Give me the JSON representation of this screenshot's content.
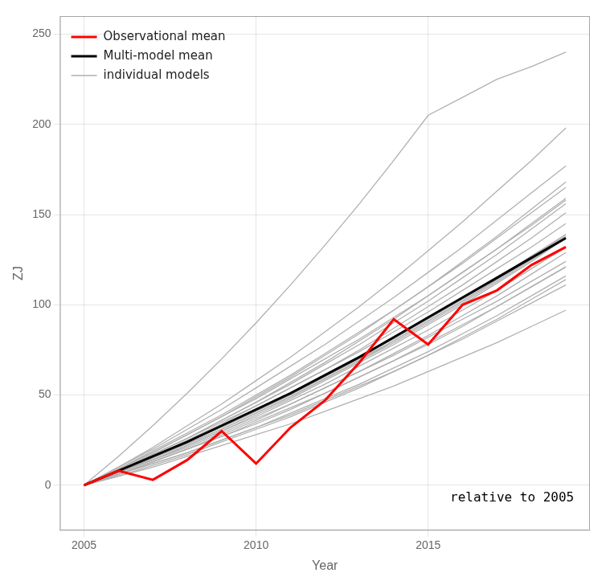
{
  "chart_data": {
    "type": "line",
    "xlabel": "Year",
    "ylabel": "ZJ",
    "annotation": "relative to 2005",
    "x": [
      2005,
      2006,
      2007,
      2008,
      2009,
      2010,
      2011,
      2012,
      2013,
      2014,
      2015,
      2016,
      2017,
      2018,
      2019
    ],
    "xlim": [
      2004.3,
      2019.7
    ],
    "ylim": [
      -25,
      260
    ],
    "xticks": [
      2005,
      2010,
      2015
    ],
    "yticks": [
      0,
      50,
      100,
      150,
      200,
      250
    ],
    "grid": true,
    "legend": "upper left",
    "series": [
      {
        "name": "Observational mean",
        "color": "#ff0000",
        "values": [
          0,
          8,
          3,
          14,
          30,
          12,
          32,
          47,
          68,
          92,
          78,
          100,
          108,
          122,
          132
        ]
      },
      {
        "name": "Multi-model mean",
        "color": "#000000",
        "values": [
          0,
          8,
          16,
          24,
          33,
          42,
          51,
          61,
          71,
          82,
          93,
          104,
          115,
          126,
          137
        ]
      },
      {
        "name": "individual models",
        "color": "#b0b0b0",
        "values": [
          0,
          5,
          10,
          16,
          22,
          28,
          34,
          41,
          48,
          55,
          63,
          71,
          79,
          88,
          97
        ]
      },
      {
        "name": "individual models",
        "color": "#b0b0b0",
        "values": [
          0,
          7,
          14,
          21,
          29,
          37,
          45,
          54,
          63,
          72,
          82,
          92,
          102,
          113,
          124
        ]
      },
      {
        "name": "individual models",
        "color": "#b0b0b0",
        "values": [
          0,
          8,
          17,
          26,
          35,
          44,
          54,
          64,
          74,
          85,
          96,
          108,
          120,
          132,
          145
        ]
      },
      {
        "name": "individual models",
        "color": "#b0b0b0",
        "values": [
          0,
          6,
          13,
          20,
          27,
          35,
          43,
          51,
          60,
          69,
          79,
          89,
          99,
          110,
          121
        ]
      },
      {
        "name": "individual models",
        "color": "#b0b0b0",
        "values": [
          0,
          8,
          16,
          24,
          33,
          42,
          51,
          61,
          71,
          81,
          92,
          103,
          115,
          127,
          139
        ]
      },
      {
        "name": "individual models",
        "color": "#b0b0b0",
        "values": [
          0,
          9,
          18,
          28,
          38,
          48,
          59,
          70,
          81,
          93,
          105,
          118,
          131,
          144,
          158
        ]
      },
      {
        "name": "individual models",
        "color": "#b0b0b0",
        "values": [
          0,
          7,
          15,
          23,
          31,
          40,
          49,
          59,
          69,
          79,
          90,
          101,
          113,
          125,
          137
        ]
      },
      {
        "name": "individual models",
        "color": "#b0b0b0",
        "values": [
          0,
          6,
          12,
          18,
          25,
          32,
          39,
          47,
          55,
          63,
          72,
          81,
          91,
          101,
          111
        ]
      },
      {
        "name": "individual models",
        "color": "#b0b0b0",
        "values": [
          0,
          8,
          16,
          24,
          32,
          41,
          50,
          60,
          70,
          80,
          91,
          102,
          114,
          126,
          138
        ]
      },
      {
        "name": "individual models",
        "color": "#b0b0b0",
        "values": [
          0,
          9,
          19,
          29,
          39,
          50,
          61,
          73,
          85,
          97,
          110,
          123,
          137,
          151,
          165
        ]
      },
      {
        "name": "individual models",
        "color": "#b0b0b0",
        "values": [
          0,
          10,
          20,
          31,
          42,
          54,
          66,
          78,
          91,
          104,
          118,
          132,
          147,
          162,
          177
        ]
      },
      {
        "name": "individual models",
        "color": "#b0b0b0",
        "values": [
          0,
          7,
          14,
          22,
          30,
          38,
          47,
          56,
          66,
          76,
          86,
          97,
          108,
          120,
          132
        ]
      },
      {
        "name": "individual models",
        "color": "#b0b0b0",
        "values": [
          0,
          6,
          13,
          20,
          27,
          34,
          42,
          51,
          60,
          69,
          78,
          88,
          99,
          110,
          121
        ]
      },
      {
        "name": "individual models",
        "color": "#b0b0b0",
        "values": [
          0,
          8,
          17,
          26,
          36,
          46,
          56,
          67,
          78,
          90,
          102,
          115,
          128,
          142,
          156
        ]
      },
      {
        "name": "individual models",
        "color": "#b0b0b0",
        "values": [
          0,
          9,
          18,
          28,
          38,
          49,
          60,
          72,
          84,
          97,
          110,
          124,
          138,
          153,
          168
        ]
      },
      {
        "name": "individual models",
        "color": "#b0b0b0",
        "values": [
          0,
          7,
          15,
          23,
          31,
          40,
          49,
          59,
          69,
          80,
          91,
          102,
          114,
          126,
          139
        ]
      },
      {
        "name": "individual models",
        "color": "#b0b0b0",
        "values": [
          0,
          6,
          12,
          18,
          25,
          32,
          40,
          48,
          56,
          65,
          74,
          84,
          94,
          105,
          116
        ]
      },
      {
        "name": "individual models",
        "color": "#b0b0b0",
        "values": [
          0,
          8,
          16,
          25,
          34,
          44,
          54,
          64,
          75,
          87,
          99,
          111,
          124,
          137,
          151
        ]
      },
      {
        "name": "individual models",
        "color": "#b0b0b0",
        "values": [
          0,
          10,
          21,
          33,
          45,
          58,
          71,
          85,
          99,
          114,
          130,
          146,
          163,
          180,
          198
        ]
      },
      {
        "name": "individual models",
        "color": "#b0b0b0",
        "values": [
          0,
          16,
          33,
          51,
          70,
          90,
          111,
          133,
          156,
          180,
          205,
          215,
          225,
          232,
          240
        ]
      },
      {
        "name": "individual models",
        "color": "#b0b0b0",
        "values": [
          0,
          5,
          11,
          17,
          24,
          31,
          38,
          46,
          54,
          63,
          72,
          82,
          92,
          103,
          114
        ]
      },
      {
        "name": "individual models",
        "color": "#b0b0b0",
        "values": [
          0,
          7,
          14,
          22,
          30,
          39,
          48,
          58,
          68,
          78,
          89,
          100,
          112,
          124,
          137
        ]
      },
      {
        "name": "individual models",
        "color": "#b0b0b0",
        "values": [
          0,
          8,
          17,
          26,
          36,
          46,
          57,
          68,
          80,
          92,
          105,
          118,
          131,
          145,
          159
        ]
      },
      {
        "name": "individual models",
        "color": "#b0b0b0",
        "values": [
          0,
          6,
          13,
          20,
          28,
          36,
          45,
          54,
          63,
          73,
          83,
          94,
          105,
          117,
          129
        ]
      }
    ]
  }
}
